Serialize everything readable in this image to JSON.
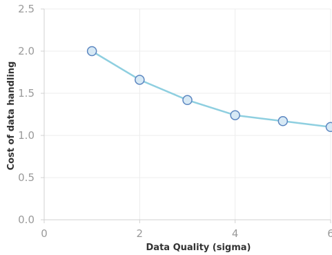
{
  "chart_data": {
    "type": "line",
    "title": "",
    "xlabel": "Data Quality (sigma)",
    "ylabel": "Cost of data handling",
    "xlim": [
      0,
      6
    ],
    "ylim": [
      0,
      2.5
    ],
    "x_ticks": [
      0,
      2,
      4,
      6
    ],
    "x_tick_labels": [
      "0",
      "2",
      "4",
      "6"
    ],
    "y_ticks": [
      0,
      0.5,
      1.0,
      1.5,
      2.0,
      2.5
    ],
    "y_tick_labels": [
      "0.0",
      "0.5",
      "1.0",
      "1.5",
      "2.0",
      "2.5"
    ],
    "grid": true,
    "legend": "none",
    "series": [
      {
        "x": [
          1,
          2,
          3,
          4,
          5,
          6
        ],
        "values": [
          2.0,
          1.66,
          1.42,
          1.24,
          1.17,
          1.1
        ],
        "line_color": "#8ecfe0",
        "marker_fill": "#d7e9f5",
        "marker_stroke": "#5b86c0"
      }
    ]
  }
}
